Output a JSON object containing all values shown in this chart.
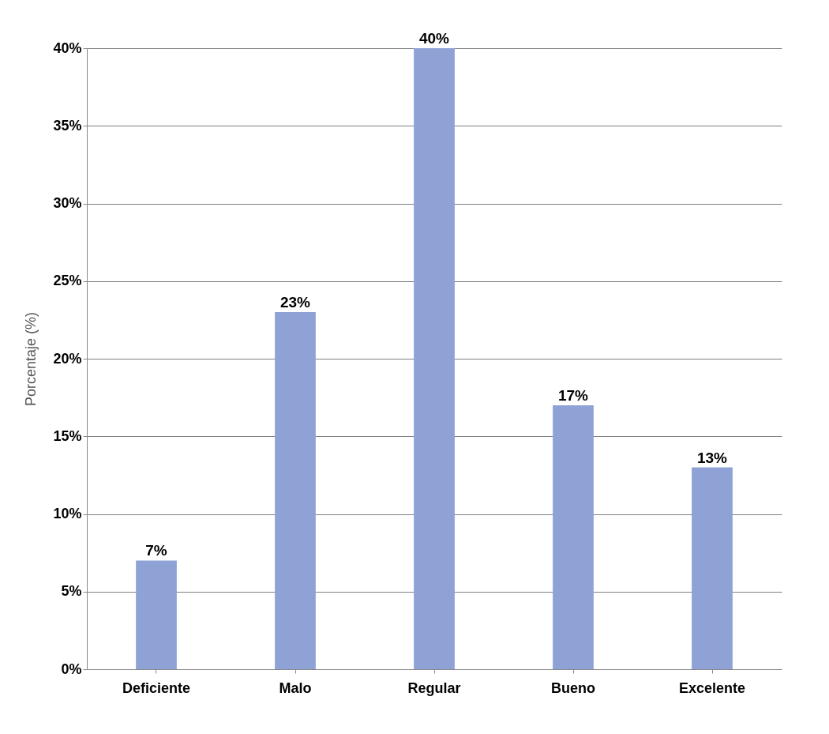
{
  "chart_data": {
    "type": "bar",
    "ylabel": "Porcentaje (%)",
    "categories": [
      "Deficiente",
      "Malo",
      "Regular",
      "Bueno",
      "Excelente"
    ],
    "values": [
      7,
      23,
      40,
      17,
      13
    ],
    "value_labels": [
      "7%",
      "23%",
      "40%",
      "17%",
      "13%"
    ],
    "color": "#8fa2d6",
    "ylim": [
      0,
      40
    ],
    "yticks": [
      {
        "value": 0,
        "label": "0%"
      },
      {
        "value": 5,
        "label": "5%"
      },
      {
        "value": 10,
        "label": "10%"
      },
      {
        "value": 15,
        "label": "15%"
      },
      {
        "value": 20,
        "label": "20%"
      },
      {
        "value": 25,
        "label": "25%"
      },
      {
        "value": 30,
        "label": "30%"
      },
      {
        "value": 35,
        "label": "35%"
      },
      {
        "value": 40,
        "label": "40%"
      }
    ],
    "grid": "y"
  }
}
